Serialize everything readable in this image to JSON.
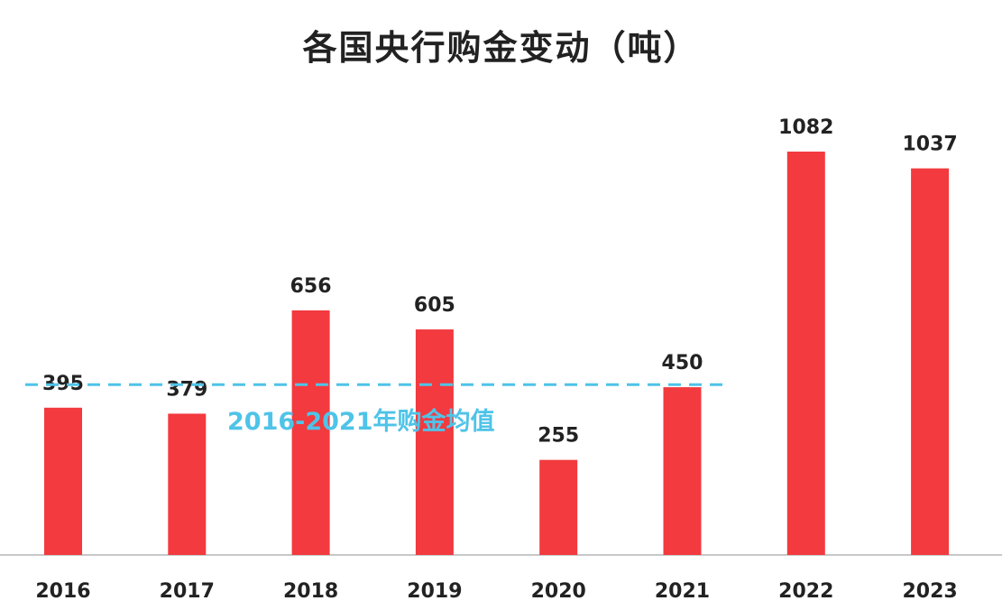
{
  "chart_data": {
    "type": "bar",
    "title": "各国央行购金变动（吨）",
    "categories": [
      "2016",
      "2017",
      "2018",
      "2019",
      "2020",
      "2021",
      "2022",
      "2023"
    ],
    "values": [
      395,
      379,
      656,
      605,
      255,
      450,
      1082,
      1037
    ],
    "xlabel": "",
    "ylabel": "",
    "ylim": [
      0,
      1100
    ],
    "grid": false,
    "reference_line": {
      "label": "2016-2021年购金均值",
      "value": 457,
      "style": "dashed"
    },
    "colors": {
      "bar": "#f23a3f",
      "reference_line": "#4fc3e8",
      "axis": "#c8c8c8"
    }
  }
}
